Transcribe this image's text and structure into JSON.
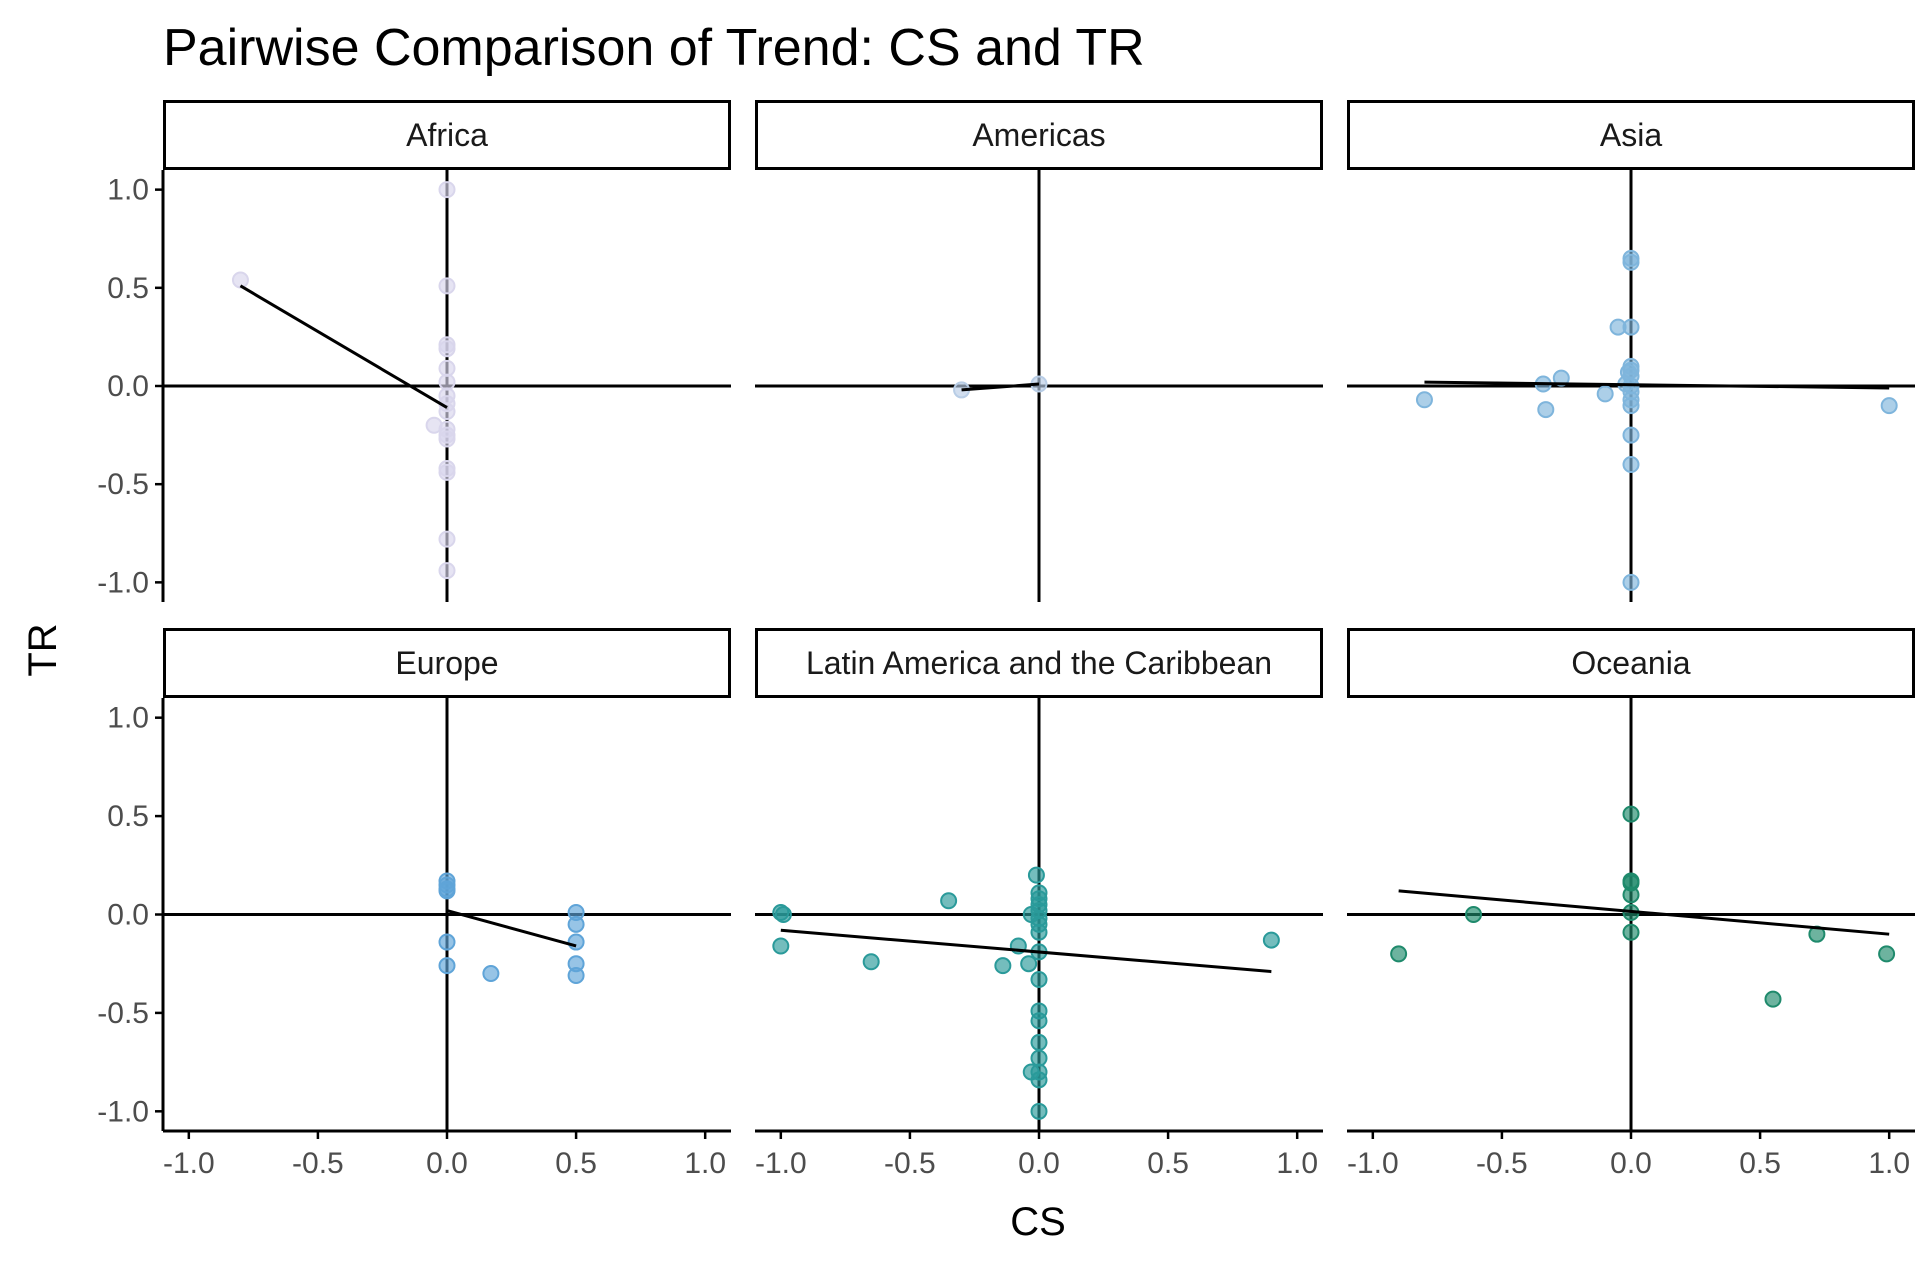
{
  "chart_data": {
    "type": "scatter",
    "title": "Pairwise Comparison of Trend: CS and TR",
    "xlabel": "CS",
    "ylabel": "TR",
    "xlim": [
      -1.1,
      1.1
    ],
    "ylim": [
      -1.1,
      1.1
    ],
    "x_ticks": [
      "-1.0",
      "-0.5",
      "0.0",
      "0.5",
      "1.0"
    ],
    "y_ticks": [
      "-1.0",
      "-0.5",
      "0.0",
      "0.5",
      "1.0"
    ],
    "grid": false,
    "legend": "none",
    "panels": [
      {
        "name": "Africa",
        "color": "#d9d6ec",
        "points": [
          [
            -0.8,
            0.54
          ],
          [
            0,
            1.0
          ],
          [
            0,
            0.51
          ],
          [
            0,
            0.21
          ],
          [
            0,
            0.19
          ],
          [
            0,
            0.09
          ],
          [
            0,
            0.02
          ],
          [
            0,
            -0.05
          ],
          [
            0,
            -0.09
          ],
          [
            0,
            -0.13
          ],
          [
            -0.05,
            -0.2
          ],
          [
            0,
            -0.22
          ],
          [
            0,
            -0.25
          ],
          [
            0,
            -0.27
          ],
          [
            0,
            -0.42
          ],
          [
            0,
            -0.44
          ],
          [
            0,
            -0.78
          ],
          [
            0,
            -0.94
          ]
        ],
        "fit": [
          [
            -0.8,
            0.51
          ],
          [
            0,
            -0.11
          ]
        ]
      },
      {
        "name": "Americas",
        "color": "#b8cde6",
        "points": [
          [
            -0.3,
            -0.02
          ],
          [
            0,
            0.01
          ]
        ],
        "fit": [
          [
            -0.3,
            -0.02
          ],
          [
            0,
            0.01
          ]
        ]
      },
      {
        "name": "Asia",
        "color": "#7fb5dc",
        "points": [
          [
            -0.8,
            -0.07
          ],
          [
            -0.34,
            0.01
          ],
          [
            -0.33,
            -0.12
          ],
          [
            -0.27,
            0.04
          ],
          [
            -0.1,
            -0.04
          ],
          [
            -0.05,
            0.3
          ],
          [
            -0.02,
            0.01
          ],
          [
            -0.01,
            0.07
          ],
          [
            0,
            0.65
          ],
          [
            0,
            0.63
          ],
          [
            0,
            0.3
          ],
          [
            0,
            0.1
          ],
          [
            0,
            0.08
          ],
          [
            0,
            0.05
          ],
          [
            0,
            0.0
          ],
          [
            0,
            -0.03
          ],
          [
            0,
            -0.07
          ],
          [
            0,
            -0.1
          ],
          [
            0,
            -0.25
          ],
          [
            0,
            -0.4
          ],
          [
            0,
            -1.0
          ],
          [
            1.0,
            -0.1
          ]
        ],
        "fit": [
          [
            -0.8,
            0.02
          ],
          [
            1.0,
            -0.01
          ]
        ]
      },
      {
        "name": "Europe",
        "color": "#5fa4d8",
        "points": [
          [
            0,
            0.17
          ],
          [
            0,
            0.15
          ],
          [
            0,
            0.13
          ],
          [
            0,
            0.12
          ],
          [
            0,
            -0.14
          ],
          [
            0,
            -0.26
          ],
          [
            0.17,
            -0.3
          ],
          [
            0.5,
            0.01
          ],
          [
            0.5,
            -0.05
          ],
          [
            0.5,
            -0.14
          ],
          [
            0.5,
            -0.25
          ],
          [
            0.5,
            -0.31
          ]
        ],
        "fit": [
          [
            0,
            0.02
          ],
          [
            0.5,
            -0.16
          ]
        ]
      },
      {
        "name": "Latin America and the Caribbean",
        "color": "#2a9a9a",
        "points": [
          [
            -1.0,
            0.01
          ],
          [
            -0.99,
            0.0
          ],
          [
            -1.0,
            -0.16
          ],
          [
            -0.65,
            -0.24
          ],
          [
            -0.35,
            0.07
          ],
          [
            -0.14,
            -0.26
          ],
          [
            -0.08,
            -0.16
          ],
          [
            -0.04,
            -0.25
          ],
          [
            -0.03,
            0.0
          ],
          [
            -0.01,
            0.2
          ],
          [
            0,
            0.11
          ],
          [
            0,
            0.08
          ],
          [
            0,
            0.05
          ],
          [
            0,
            0.02
          ],
          [
            0,
            -0.02
          ],
          [
            0,
            -0.05
          ],
          [
            0,
            -0.09
          ],
          [
            0,
            -0.19
          ],
          [
            0,
            -0.33
          ],
          [
            0,
            -0.49
          ],
          [
            0,
            -0.54
          ],
          [
            0,
            -0.65
          ],
          [
            0,
            -0.73
          ],
          [
            -0.03,
            -0.8
          ],
          [
            0,
            -0.8
          ],
          [
            0,
            -0.84
          ],
          [
            0,
            -1.0
          ],
          [
            0.9,
            -0.13
          ]
        ],
        "fit": [
          [
            -1.0,
            -0.08
          ],
          [
            0.9,
            -0.29
          ]
        ]
      },
      {
        "name": "Oceania",
        "color": "#1f8a6c",
        "points": [
          [
            -0.9,
            -0.2
          ],
          [
            -0.61,
            0.0
          ],
          [
            0,
            0.51
          ],
          [
            0,
            0.17
          ],
          [
            0,
            0.16
          ],
          [
            0,
            0.1
          ],
          [
            0,
            0.01
          ],
          [
            0,
            -0.09
          ],
          [
            0.55,
            -0.43
          ],
          [
            0.72,
            -0.1
          ],
          [
            0.99,
            -0.2
          ]
        ],
        "fit": [
          [
            -0.9,
            0.12
          ],
          [
            1.0,
            -0.1
          ]
        ]
      }
    ]
  }
}
